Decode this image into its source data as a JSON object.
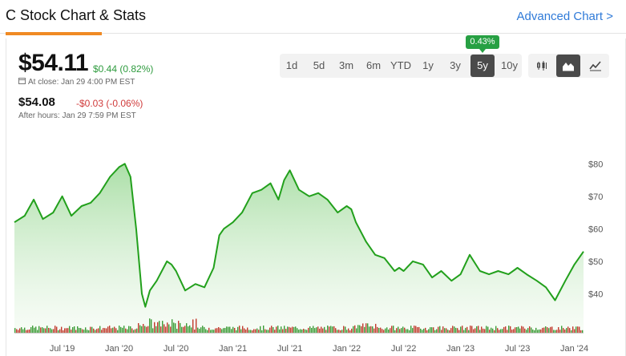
{
  "header": {
    "title": "C Stock Chart & Stats",
    "advanced_link": "Advanced Chart >"
  },
  "quote": {
    "price": "$54.11",
    "change": "$0.44 (0.82%)",
    "close_label": "At close: Jan 29 4:00 PM EST",
    "after_hours_price": "$54.08",
    "after_hours_change": "-$0.03 (-0.06%)",
    "after_hours_label": "After hours: Jan 29 7:59 PM EST"
  },
  "ranges": {
    "items": [
      "1d",
      "5d",
      "3m",
      "6m",
      "YTD",
      "1y",
      "3y",
      "5y",
      "10y"
    ],
    "selected": "5y",
    "selected_tooltip": "0.43%"
  },
  "chart_types": {
    "items": [
      "candlestick-icon",
      "area-chart-icon",
      "line-chart-icon"
    ],
    "selected": "area-chart-icon"
  },
  "colors": {
    "accent": "#f08a24",
    "up": "#2e9b3e",
    "down": "#d03b3b",
    "line": "#22a01c",
    "link": "#2f7ad8"
  },
  "chart_data": {
    "type": "area",
    "x_tick_labels": [
      "Jul '19",
      "Jan '20",
      "Jul '20",
      "Jan '21",
      "Jul '21",
      "Jan '22",
      "Jul '22",
      "Jan '23",
      "Jul '23",
      "Jan '24"
    ],
    "y_tick_labels": [
      "$80",
      "$70",
      "$60",
      "$50",
      "$40"
    ],
    "y_ticks": [
      80,
      70,
      60,
      50,
      40
    ],
    "ylim": [
      28,
      86
    ],
    "xlim": [
      2019.08,
      2024.08
    ],
    "series": [
      {
        "x": [
          2019.08,
          2019.17,
          2019.25,
          2019.33,
          2019.42,
          2019.5,
          2019.58,
          2019.67,
          2019.75,
          2019.83,
          2019.92,
          2020.0,
          2020.05,
          2020.1,
          2020.15,
          2020.2,
          2020.23,
          2020.27,
          2020.33,
          2020.42,
          2020.46,
          2020.5,
          2020.58,
          2020.67,
          2020.75,
          2020.83,
          2020.88,
          2020.92,
          2021.0,
          2021.08,
          2021.17,
          2021.25,
          2021.33,
          2021.4,
          2021.45,
          2021.5,
          2021.58,
          2021.67,
          2021.75,
          2021.83,
          2021.92,
          2022.0,
          2022.04,
          2022.08,
          2022.17,
          2022.25,
          2022.33,
          2022.42,
          2022.46,
          2022.5,
          2022.58,
          2022.67,
          2022.75,
          2022.83,
          2022.92,
          2023.0,
          2023.08,
          2023.17,
          2023.25,
          2023.33,
          2023.42,
          2023.5,
          2023.58,
          2023.67,
          2023.75,
          2023.83,
          2023.92,
          2024.0,
          2024.08
        ],
        "values": [
          62,
          64,
          69,
          63,
          65,
          70,
          64,
          67,
          68,
          71,
          76,
          79,
          80,
          76,
          60,
          40,
          36,
          41,
          44,
          50,
          49,
          47,
          41,
          43,
          42,
          48,
          58,
          60,
          62,
          65,
          71,
          72,
          74,
          69,
          75,
          78,
          72,
          70,
          71,
          69,
          65,
          67,
          66,
          62,
          56,
          52,
          51,
          47,
          48,
          47,
          50,
          49,
          45,
          47,
          44,
          46,
          52,
          47,
          46,
          47,
          46,
          48,
          46,
          44,
          42,
          38,
          44,
          49,
          53
        ]
      }
    ],
    "volume_note": "Daily volume bars (red/green) along the bottom"
  }
}
